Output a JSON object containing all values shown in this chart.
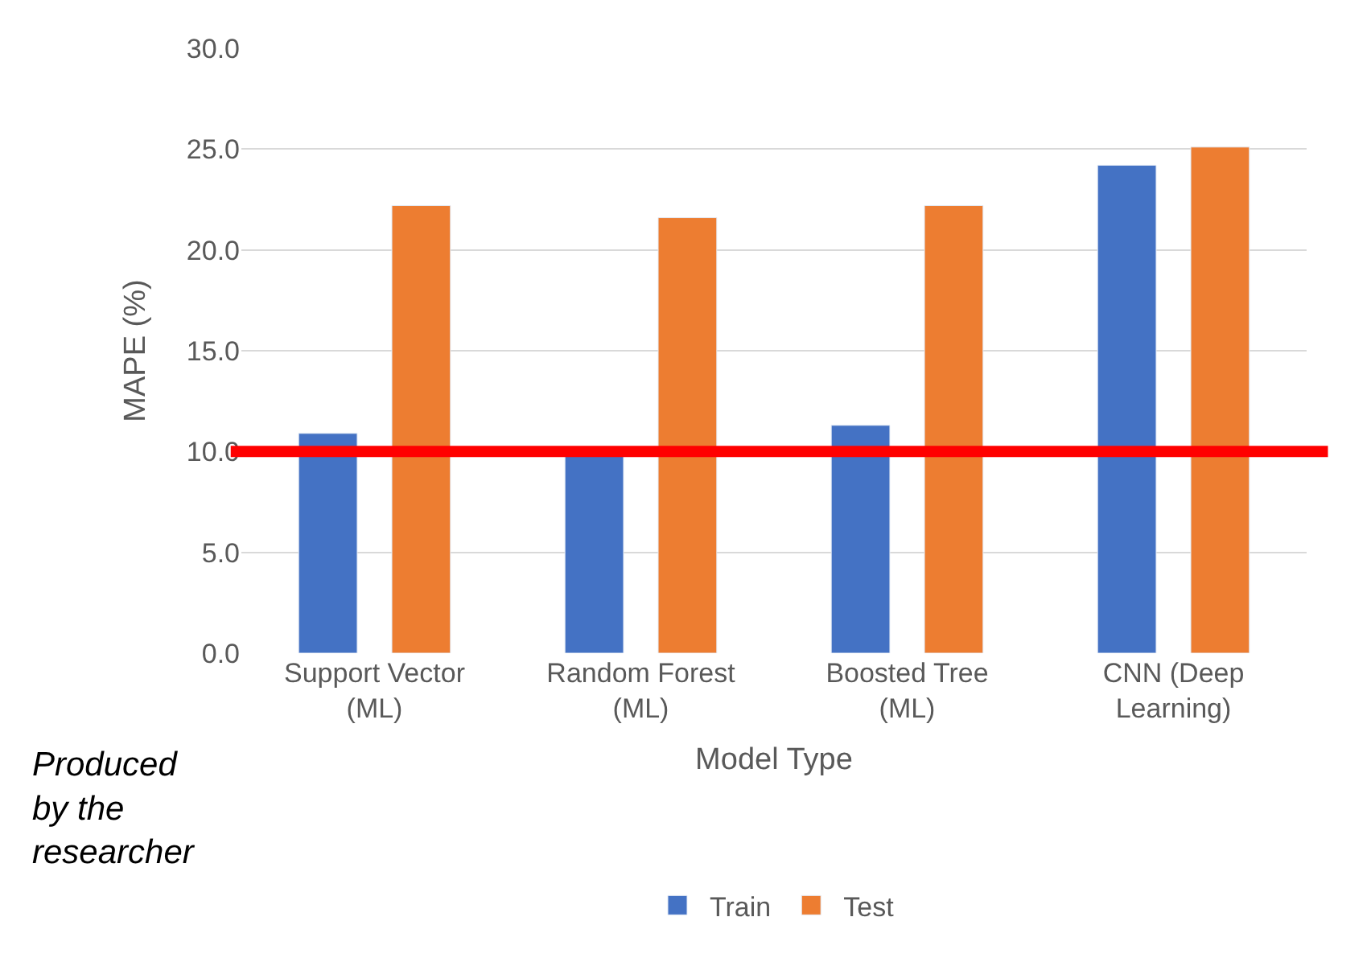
{
  "chart_data": {
    "type": "bar",
    "xlabel": "Model Type",
    "ylabel": "MAPE (%)",
    "categories": [
      "Support Vector (ML)",
      "Random Forest (ML)",
      "Boosted Tree (ML)",
      "CNN (Deep Learning)"
    ],
    "series": [
      {
        "name": "Train",
        "color": "#4472c4",
        "values": [
          10.9,
          9.8,
          11.3,
          24.2
        ]
      },
      {
        "name": "Test",
        "color": "#ed7d31",
        "values": [
          22.2,
          21.6,
          22.2,
          25.1
        ]
      }
    ],
    "ylim": [
      0,
      30
    ],
    "yticks": [
      {
        "value": 0,
        "label": "0.0"
      },
      {
        "value": 5,
        "label": "5.0"
      },
      {
        "value": 10,
        "label": "10.0"
      },
      {
        "value": 15,
        "label": "15.0"
      },
      {
        "value": 20,
        "label": "20.0"
      },
      {
        "value": 25,
        "label": "25.0"
      },
      {
        "value": 30,
        "label": "30.0"
      }
    ],
    "grid": "y",
    "legend": "bottom",
    "ref_lines": [
      {
        "axis": "y",
        "value": 10,
        "label": null,
        "color": "#ff0000"
      }
    ],
    "annotations": [
      "Produced by the researcher"
    ]
  }
}
